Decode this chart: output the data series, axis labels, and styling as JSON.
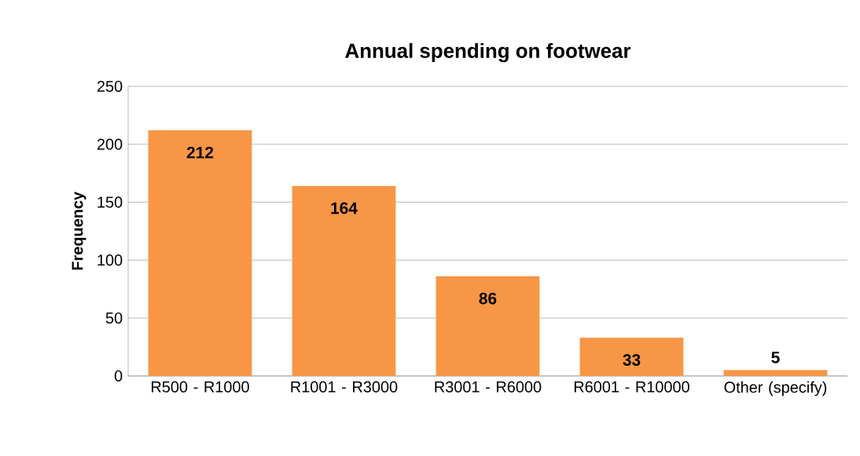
{
  "chart_data": {
    "type": "bar",
    "title": "Annual spending on footwear",
    "ylabel": "Frequency",
    "categories": [
      "R500 - R1000",
      "R1001 - R3000",
      "R3001 - R6000",
      "R6001 - R10000",
      "Other (specify)"
    ],
    "values": [
      212,
      164,
      86,
      33,
      5
    ],
    "color": "#f79646",
    "ylim": [
      0,
      250
    ],
    "yticks": [
      0,
      50,
      100,
      150,
      200,
      250
    ],
    "grid": "y",
    "data_labels": true
  }
}
